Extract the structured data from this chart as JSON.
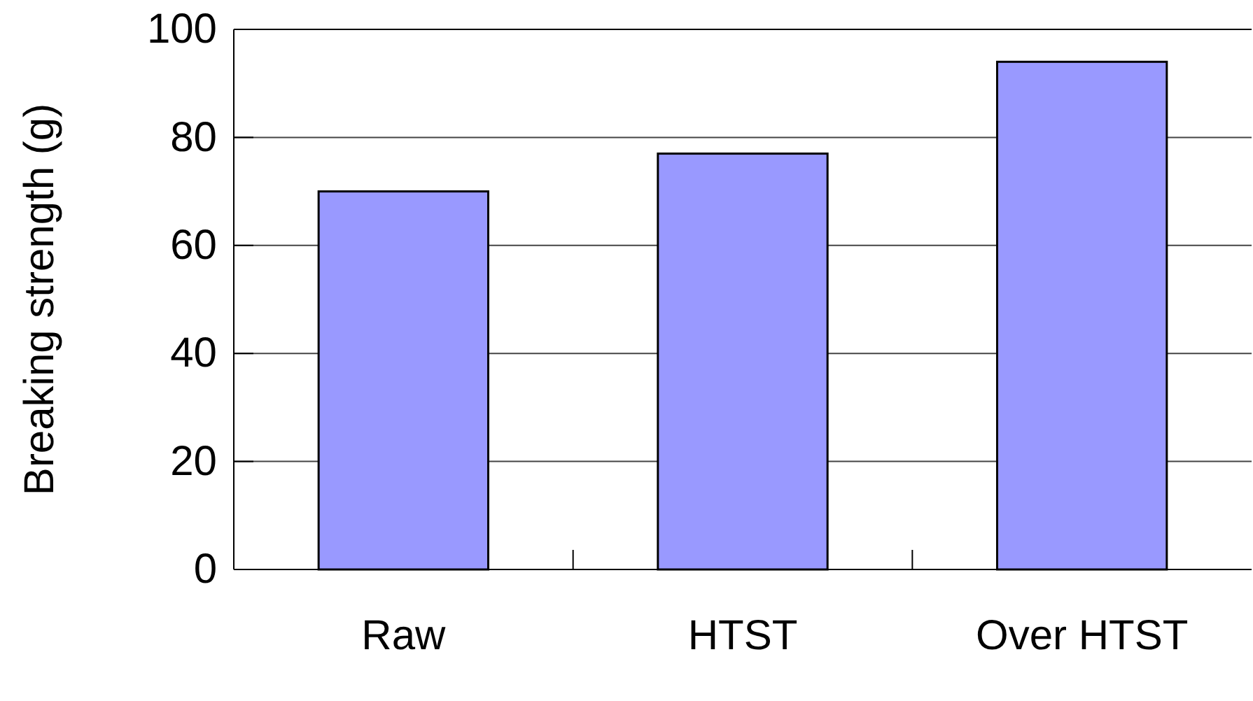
{
  "chart_data": {
    "type": "bar",
    "ylabel": "Breaking strength (g)",
    "categories": [
      "Raw",
      "HTST",
      "Over HTST"
    ],
    "values": [
      70,
      77,
      94
    ],
    "color": "#9999ff",
    "ylim": [
      0,
      100
    ],
    "yticks": [
      0,
      20,
      40,
      60,
      80,
      100
    ],
    "grid": "y"
  }
}
